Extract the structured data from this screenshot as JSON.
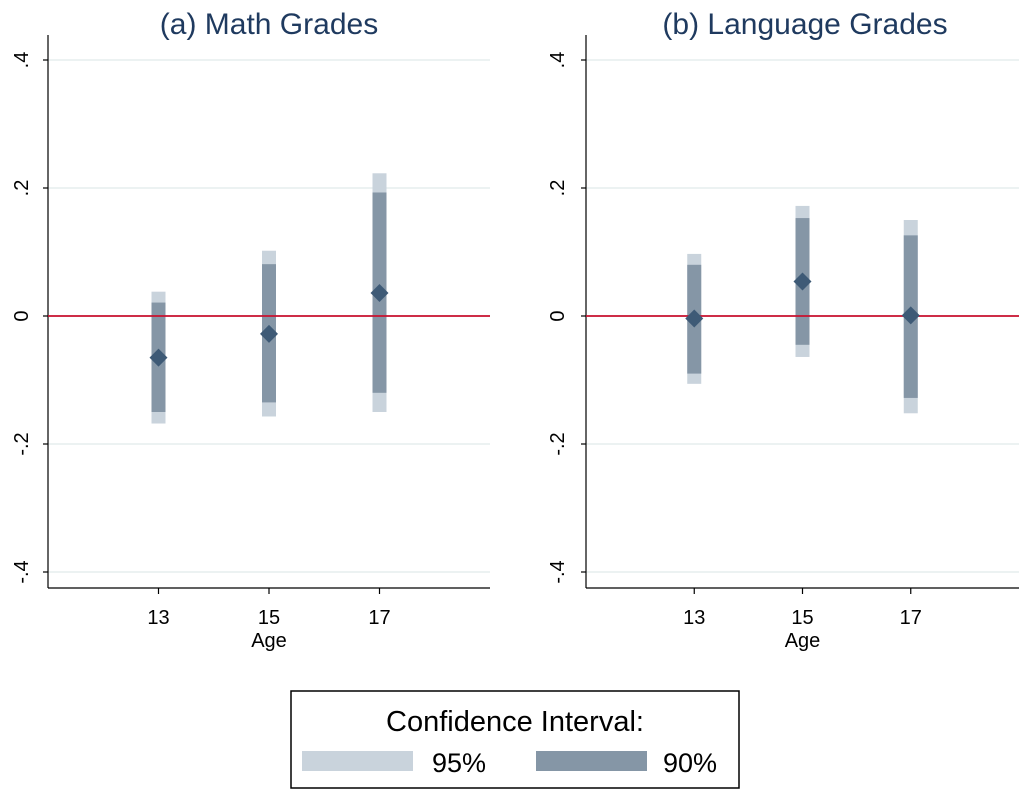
{
  "chart_data": [
    {
      "type": "scatter",
      "title": "(a) Math Grades",
      "xlabel": "Age",
      "ylabel": "",
      "x": [
        13,
        15,
        17
      ],
      "xticks": [
        "13",
        "15",
        "17"
      ],
      "xlim": [
        11,
        19
      ],
      "ylim": [
        -0.4,
        0.4
      ],
      "yticks": [
        -0.4,
        -0.2,
        0,
        0.2,
        0.4
      ],
      "ytick_labels": [
        "-.4",
        "-.2",
        "0",
        ".2",
        ".4"
      ],
      "estimates": [
        -0.065,
        -0.028,
        0.036
      ],
      "ci95": [
        [
          -0.168,
          0.038
        ],
        [
          -0.157,
          0.102
        ],
        [
          -0.15,
          0.223
        ]
      ],
      "ci90": [
        [
          -0.15,
          0.021
        ],
        [
          -0.135,
          0.081
        ],
        [
          -0.12,
          0.193
        ]
      ],
      "reference_line": 0,
      "grid": true
    },
    {
      "type": "scatter",
      "title": "(b) Language Grades",
      "xlabel": "Age",
      "ylabel": "",
      "x": [
        13,
        15,
        17
      ],
      "xticks": [
        "13",
        "15",
        "17"
      ],
      "xlim": [
        11,
        19
      ],
      "ylim": [
        -0.4,
        0.4
      ],
      "yticks": [
        -0.4,
        -0.2,
        0,
        0.2,
        0.4
      ],
      "ytick_labels": [
        "-.4",
        "-.2",
        "0",
        ".2",
        ".4"
      ],
      "estimates": [
        -0.004,
        0.054,
        0.001
      ],
      "ci95": [
        [
          -0.106,
          0.097
        ],
        [
          -0.064,
          0.172
        ],
        [
          -0.152,
          0.15
        ]
      ],
      "ci90": [
        [
          -0.09,
          0.08
        ],
        [
          -0.045,
          0.153
        ],
        [
          -0.128,
          0.126
        ]
      ],
      "reference_line": 0,
      "grid": true
    }
  ],
  "legend": {
    "title": "Confidence Interval:",
    "items": [
      {
        "label": "95%",
        "color": "#c9d3dc"
      },
      {
        "label": "90%",
        "color": "#8596a6"
      }
    ],
    "placement": "bottom-center"
  },
  "colors": {
    "ci95": "#c9d3dc",
    "ci90": "#8596a6",
    "marker": "#3e5a76",
    "zero_line": "#c8102e",
    "grid": "#e6eeee",
    "title": "#1f3a5f"
  }
}
